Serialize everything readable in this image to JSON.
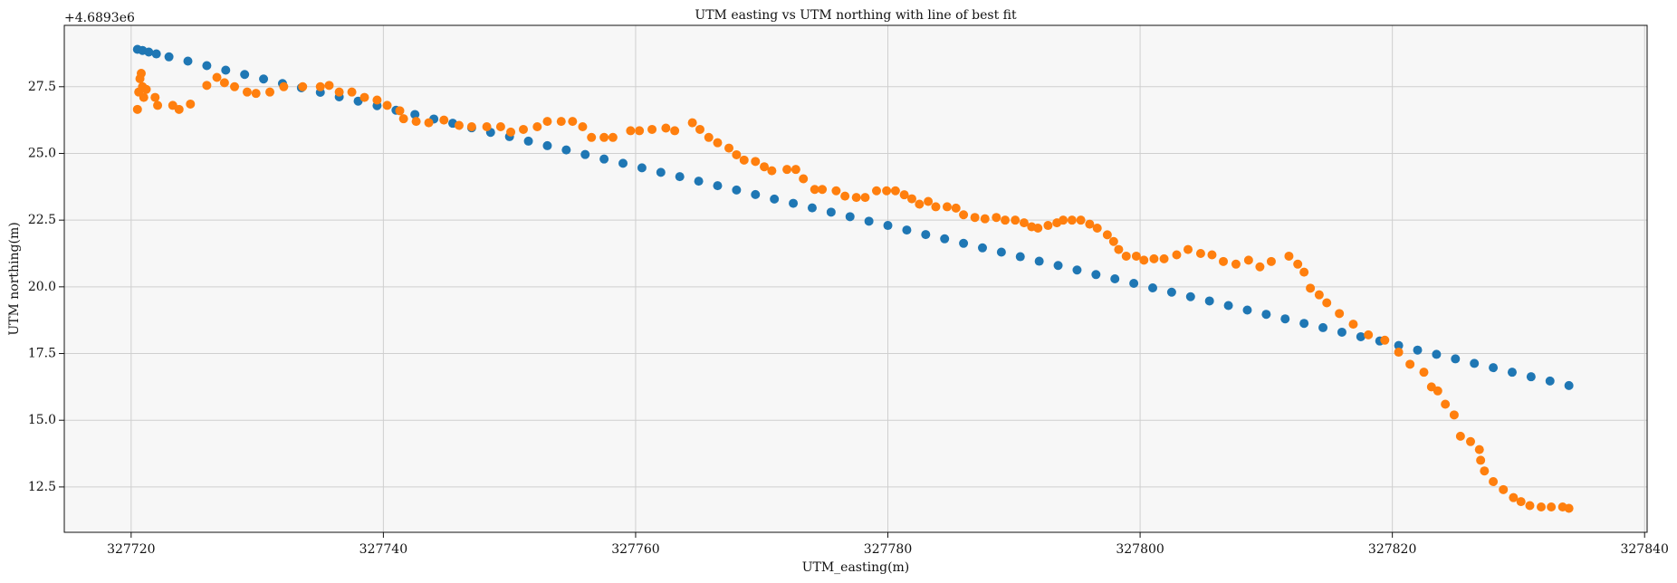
{
  "chart_data": {
    "type": "scatter",
    "title": "UTM easting vs UTM northing with line of best fit",
    "x_label": "UTM_easting(m)",
    "y_label": "UTM northing(m)",
    "y_offset_label": "+4.6893e6",
    "xlim": [
      327714.7,
      327840.2
    ],
    "ylim": [
      10.8,
      29.8
    ],
    "xticks": [
      327720,
      327740,
      327760,
      327780,
      327800,
      327820,
      327840
    ],
    "yticks": [
      12.5,
      {
        "value": 15,
        "label": "15.0"
      },
      17.5,
      {
        "value": 20,
        "label": "20.0"
      },
      22.5,
      {
        "value": 25,
        "label": "25.0"
      },
      27.5
    ],
    "grid": true,
    "series": [
      {
        "color": "#1f77b4",
        "x": [
          327720.5,
          327720.9,
          327721.4,
          327722,
          327723,
          327724.5,
          327726,
          327727.5,
          327729,
          327730.5,
          327732,
          327733.5,
          327735,
          327736.5,
          327738,
          327739.5,
          327741,
          327742.5,
          327744,
          327745.5,
          327747,
          327748.5,
          327750,
          327751.5,
          327753,
          327754.5,
          327756,
          327757.5,
          327759,
          327760.5,
          327762,
          327763.5,
          327765,
          327766.5,
          327768,
          327769.5,
          327771,
          327772.5,
          327774,
          327775.5,
          327777,
          327778.5,
          327780,
          327781.5,
          327783,
          327784.5,
          327786,
          327787.5,
          327789,
          327790.5,
          327792,
          327793.5,
          327795,
          327796.5,
          327798,
          327799.5,
          327801,
          327802.5,
          327804,
          327805.5,
          327807,
          327808.5,
          327810,
          327811.5,
          327813,
          327814.5,
          327816,
          327817.5,
          327819,
          327820.5,
          327822,
          327823.5,
          327825,
          327826.5,
          327828,
          327829.5,
          327831,
          327832.5,
          327834
        ],
        "values": [
          28.9,
          28.86,
          28.8,
          28.73,
          28.62,
          28.46,
          28.29,
          28.12,
          27.96,
          27.79,
          27.62,
          27.46,
          27.29,
          27.12,
          26.96,
          26.79,
          26.62,
          26.46,
          26.29,
          26.13,
          25.96,
          25.79,
          25.63,
          25.46,
          25.29,
          25.13,
          24.96,
          24.79,
          24.63,
          24.46,
          24.29,
          24.13,
          23.96,
          23.79,
          23.63,
          23.46,
          23.29,
          23.13,
          22.96,
          22.8,
          22.63,
          22.46,
          22.3,
          22.13,
          21.96,
          21.8,
          21.63,
          21.46,
          21.3,
          21.13,
          20.96,
          20.8,
          20.63,
          20.46,
          20.3,
          20.13,
          19.96,
          19.8,
          19.63,
          19.47,
          19.3,
          19.13,
          18.97,
          18.8,
          18.63,
          18.47,
          18.3,
          18.13,
          17.97,
          17.8,
          17.63,
          17.47,
          17.3,
          17.13,
          16.97,
          16.8,
          16.63,
          16.47,
          16.3
        ]
      },
      {
        "color": "#ff7f0e",
        "x": [
          327720.5,
          327720.6,
          327720.7,
          327720.8,
          327720.9,
          327721.2,
          327721.0,
          327721.9,
          327722.1,
          327723.3,
          327723.8,
          327724.7,
          327726.0,
          327726.8,
          327727.4,
          327728.2,
          327729.2,
          327729.9,
          327731.0,
          327732.1,
          327733.6,
          327735.0,
          327735.7,
          327736.5,
          327737.5,
          327738.5,
          327739.5,
          327740.3,
          327741.3,
          327741.6,
          327742.6,
          327743.6,
          327744.8,
          327746.0,
          327747.0,
          327748.2,
          327749.3,
          327750.1,
          327751.1,
          327752.2,
          327753.0,
          327754.1,
          327755.0,
          327755.8,
          327756.5,
          327757.5,
          327758.2,
          327759.6,
          327760.3,
          327761.3,
          327762.4,
          327763.1,
          327764.5,
          327765.1,
          327765.8,
          327766.5,
          327767.4,
          327768.0,
          327768.6,
          327769.5,
          327770.2,
          327770.8,
          327772.0,
          327772.7,
          327773.3,
          327774.2,
          327774.8,
          327775.9,
          327776.6,
          327777.5,
          327778.2,
          327779.1,
          327779.9,
          327780.6,
          327781.3,
          327781.9,
          327782.5,
          327783.2,
          327783.8,
          327784.7,
          327785.4,
          327786.0,
          327786.9,
          327787.7,
          327788.6,
          327789.3,
          327790.1,
          327790.8,
          327791.4,
          327791.9,
          327792.7,
          327793.4,
          327793.9,
          327794.6,
          327795.3,
          327796.0,
          327796.6,
          327797.4,
          327797.9,
          327798.3,
          327798.9,
          327799.7,
          327800.3,
          327801.1,
          327801.9,
          327802.9,
          327803.8,
          327804.8,
          327805.7,
          327806.6,
          327807.6,
          327808.6,
          327809.5,
          327810.4,
          327811.8,
          327812.5,
          327813.0,
          327813.5,
          327814.2,
          327814.8,
          327815.8,
          327816.9,
          327818.1,
          327819.4,
          327820.5,
          327821.4,
          327822.5,
          327823.1,
          327823.6,
          327824.2,
          327824.9,
          327825.4,
          327826.2,
          327826.9,
          327827.0,
          327827.3,
          327828.0,
          327828.8,
          327829.6,
          327830.2,
          327830.9,
          327831.8,
          327832.6,
          327833.5,
          327834.0
        ],
        "values": [
          26.65,
          27.3,
          27.8,
          28.0,
          27.5,
          27.4,
          27.1,
          27.1,
          26.8,
          26.8,
          26.65,
          26.85,
          27.55,
          27.85,
          27.65,
          27.5,
          27.3,
          27.25,
          27.3,
          27.5,
          27.5,
          27.5,
          27.55,
          27.3,
          27.3,
          27.1,
          27.0,
          26.8,
          26.6,
          26.3,
          26.2,
          26.15,
          26.25,
          26.05,
          26.0,
          26.0,
          26.0,
          25.8,
          25.9,
          26.0,
          26.2,
          26.2,
          26.2,
          26.0,
          25.6,
          25.6,
          25.6,
          25.85,
          25.85,
          25.9,
          25.95,
          25.85,
          26.15,
          25.9,
          25.6,
          25.4,
          25.2,
          24.95,
          24.75,
          24.7,
          24.5,
          24.35,
          24.4,
          24.4,
          24.05,
          23.65,
          23.65,
          23.6,
          23.4,
          23.35,
          23.35,
          23.6,
          23.6,
          23.6,
          23.45,
          23.3,
          23.1,
          23.2,
          23.0,
          23.0,
          22.95,
          22.7,
          22.6,
          22.55,
          22.6,
          22.5,
          22.5,
          22.4,
          22.25,
          22.2,
          22.3,
          22.4,
          22.5,
          22.5,
          22.5,
          22.35,
          22.2,
          21.95,
          21.7,
          21.4,
          21.15,
          21.15,
          21.0,
          21.05,
          21.05,
          21.2,
          21.4,
          21.25,
          21.2,
          20.95,
          20.85,
          21.0,
          20.75,
          20.95,
          21.15,
          20.85,
          20.55,
          19.95,
          19.7,
          19.4,
          19.0,
          18.6,
          18.2,
          18.0,
          17.55,
          17.1,
          16.8,
          16.25,
          16.1,
          15.6,
          15.2,
          14.4,
          14.2,
          13.9,
          13.5,
          13.1,
          12.7,
          12.4,
          12.1,
          11.95,
          11.8,
          11.75,
          11.75,
          11.75,
          11.7
        ]
      }
    ]
  }
}
